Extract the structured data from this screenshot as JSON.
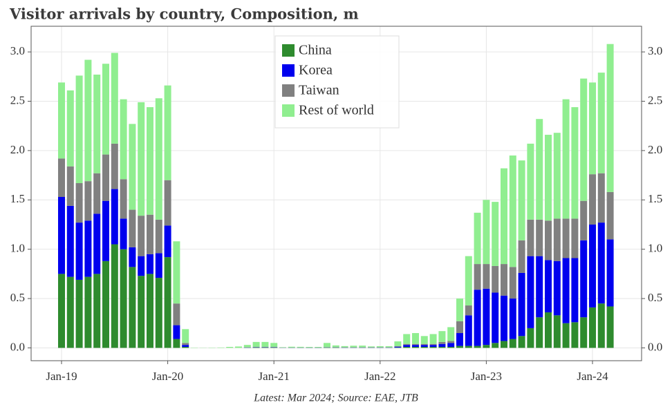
{
  "chart_data": {
    "type": "stacked_bar",
    "title": "Visitor arrivals by country, Composition, m",
    "footnote": "Latest: Mar 2024; Source: EAE, JTB",
    "categories": [
      "Jan-19",
      null,
      null,
      null,
      null,
      null,
      null,
      null,
      null,
      null,
      null,
      null,
      "Jan-20",
      null,
      null,
      null,
      null,
      null,
      null,
      null,
      null,
      null,
      null,
      null,
      "Jan-21",
      null,
      null,
      null,
      null,
      null,
      null,
      null,
      null,
      null,
      null,
      null,
      "Jan-22",
      null,
      null,
      null,
      null,
      null,
      null,
      null,
      null,
      null,
      null,
      null,
      "Jan-23",
      null,
      null,
      null,
      null,
      null,
      null,
      null,
      null,
      null,
      null,
      null,
      "Jan-24",
      null,
      null
    ],
    "series": [
      {
        "name": "China",
        "color": "#2e8b2e",
        "values": [
          0.75,
          0.72,
          0.69,
          0.72,
          0.75,
          0.88,
          1.05,
          1.0,
          0.82,
          0.73,
          0.75,
          0.71,
          0.92,
          0.09,
          0.01,
          0,
          0,
          0,
          0,
          0,
          0,
          0.002,
          0.005,
          0.005,
          0.005,
          0.001,
          0.002,
          0.002,
          0.002,
          0.002,
          0.003,
          0.003,
          0.002,
          0.002,
          0.002,
          0.002,
          0.002,
          0.002,
          0.004,
          0.01,
          0.01,
          0.01,
          0.01,
          0.01,
          0.01,
          0.02,
          0.02,
          0.02,
          0.03,
          0.05,
          0.07,
          0.09,
          0.12,
          0.2,
          0.31,
          0.36,
          0.33,
          0.25,
          0.26,
          0.31,
          0.41,
          0.45,
          0.42
        ]
      },
      {
        "name": "Korea",
        "color": "#0000ee",
        "values": [
          0.78,
          0.72,
          0.58,
          0.57,
          0.61,
          0.61,
          0.56,
          0.31,
          0.2,
          0.2,
          0.2,
          0.25,
          0.32,
          0.14,
          0.02,
          0,
          0,
          0,
          0,
          0,
          0,
          0.002,
          0.003,
          0.003,
          0.003,
          0.001,
          0.001,
          0.001,
          0.001,
          0.001,
          0.002,
          0.002,
          0.002,
          0.002,
          0.002,
          0.002,
          0.002,
          0.002,
          0.008,
          0.02,
          0.02,
          0.02,
          0.02,
          0.03,
          0.04,
          0.13,
          0.31,
          0.57,
          0.57,
          0.51,
          0.46,
          0.41,
          0.64,
          0.73,
          0.62,
          0.53,
          0.55,
          0.66,
          0.65,
          0.78,
          0.84,
          0.82,
          0.68
        ]
      },
      {
        "name": "Taiwan",
        "color": "#808080",
        "values": [
          0.39,
          0.4,
          0.4,
          0.4,
          0.41,
          0.47,
          0.46,
          0.4,
          0.38,
          0.41,
          0.4,
          0.34,
          0.46,
          0.22,
          0.02,
          0,
          0,
          0,
          0,
          0,
          0,
          0.002,
          0.002,
          0.002,
          0.002,
          0.001,
          0.001,
          0.001,
          0.001,
          0.001,
          0.002,
          0.002,
          0.002,
          0.002,
          0.002,
          0.002,
          0.002,
          0.002,
          0.005,
          0.01,
          0.01,
          0.01,
          0.01,
          0.02,
          0.02,
          0.12,
          0.1,
          0.26,
          0.25,
          0.27,
          0.32,
          0.32,
          0.33,
          0.37,
          0.37,
          0.4,
          0.43,
          0.4,
          0.4,
          0.4,
          0.51,
          0.5,
          0.48
        ]
      },
      {
        "name": "Rest of world",
        "color": "#90ee90",
        "values": [
          0.77,
          0.77,
          1.09,
          1.23,
          1.0,
          0.92,
          0.92,
          0.81,
          0.87,
          1.15,
          1.09,
          1.23,
          0.96,
          0.63,
          0.14,
          0.003,
          0.002,
          0.003,
          0.004,
          0.01,
          0.014,
          0.024,
          0.05,
          0.05,
          0.04,
          0.004,
          0.008,
          0.007,
          0.006,
          0.006,
          0.043,
          0.018,
          0.012,
          0.016,
          0.017,
          0.009,
          0.011,
          0.011,
          0.049,
          0.1,
          0.11,
          0.08,
          0.1,
          0.11,
          0.14,
          0.23,
          0.5,
          0.52,
          0.65,
          0.65,
          0.97,
          1.13,
          0.81,
          0.77,
          1.02,
          0.87,
          0.87,
          1.21,
          1.13,
          1.24,
          0.93,
          1.02,
          1.5
        ]
      }
    ],
    "ylim": [
      -0.13,
      3.26
    ],
    "yticks": [
      {
        "value": 0,
        "label": "0.0"
      },
      0.5,
      {
        "value": 1,
        "label": "1.0"
      },
      1.5,
      {
        "value": 2,
        "label": "2.0"
      },
      2.5,
      {
        "value": 3,
        "label": "3.0"
      }
    ],
    "grid": true,
    "legend": "upper center"
  }
}
